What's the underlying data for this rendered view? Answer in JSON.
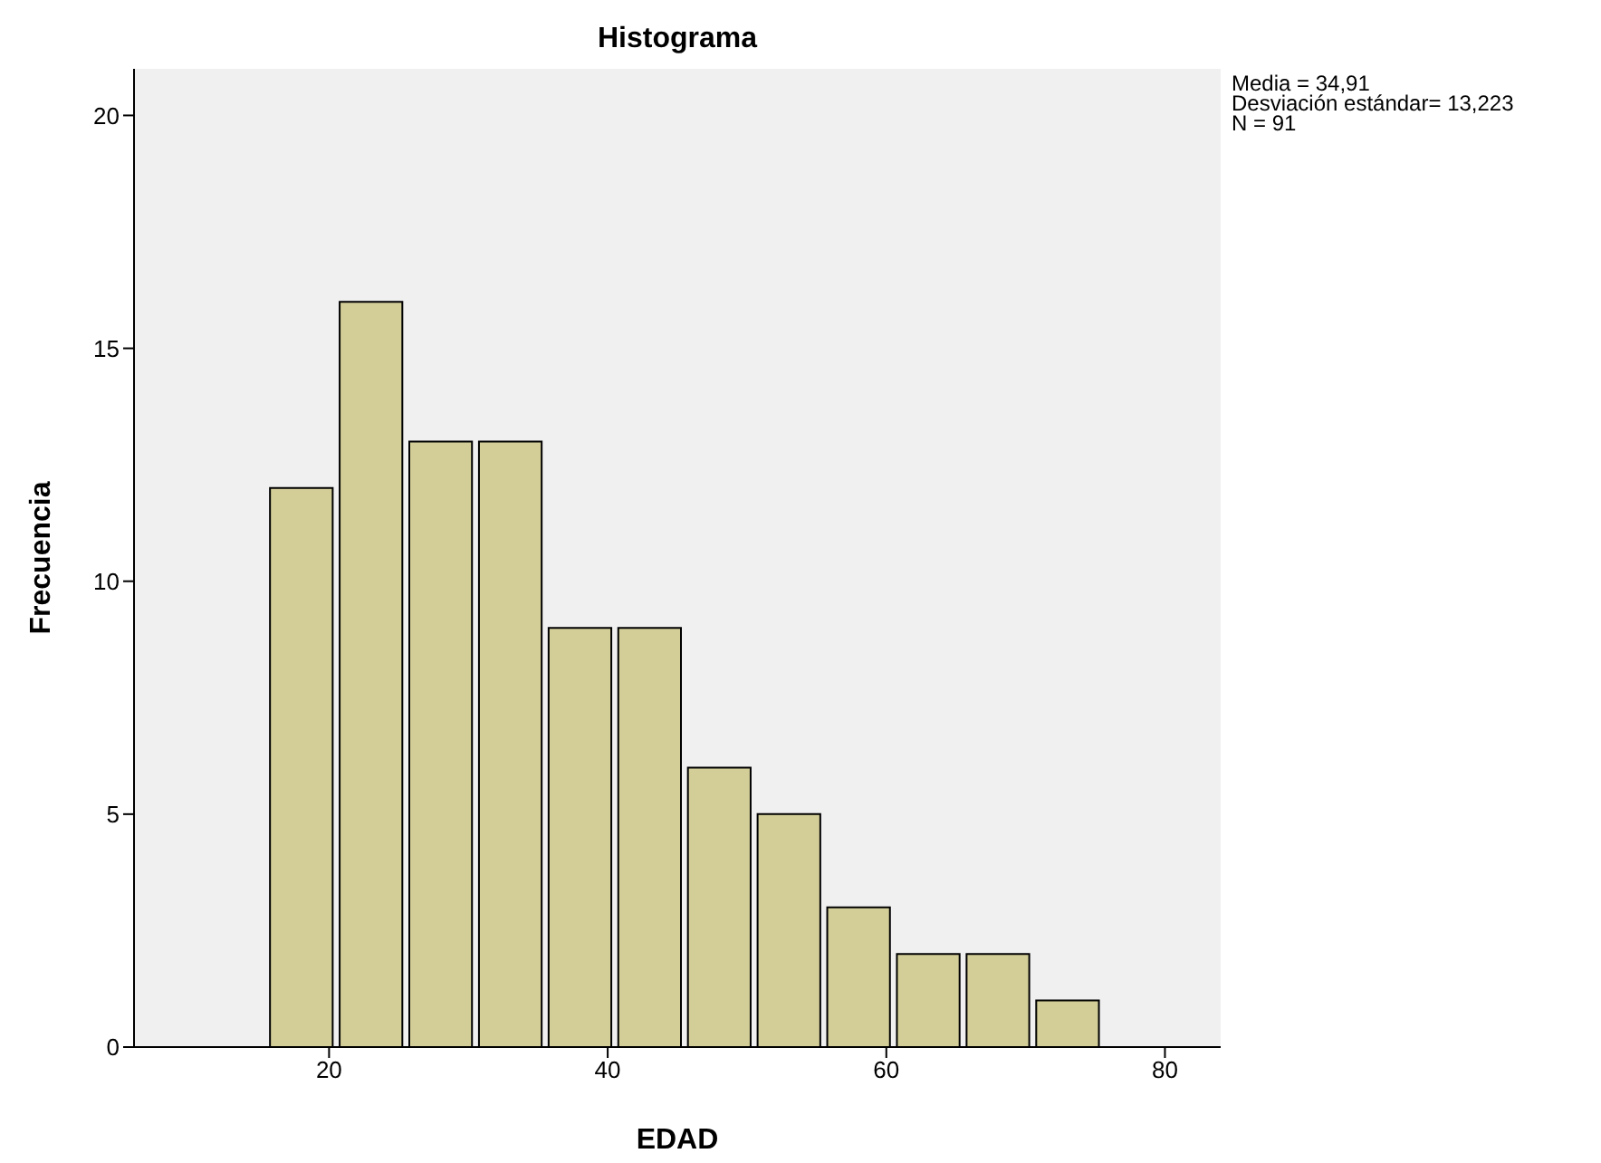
{
  "chart_data": {
    "type": "histogram",
    "title": "Histograma",
    "xlabel": "EDAD",
    "ylabel": "Frecuencia",
    "bins": [
      15.5,
      20.5,
      25.5,
      30.5,
      35.5,
      40.5,
      45.5,
      50.5,
      55.5,
      60.5,
      65.5,
      70.5,
      75.5
    ],
    "values": [
      12,
      16,
      13,
      13,
      9,
      9,
      6,
      5,
      3,
      2,
      2,
      1
    ],
    "color": "#d3ce98",
    "xlim": [
      6,
      84
    ],
    "xticks": [
      20,
      40,
      60,
      80
    ],
    "ylim": [
      0,
      21
    ],
    "yticks": [
      0,
      5,
      10,
      15,
      20
    ],
    "grid": false,
    "annotations": [
      "Media = 34,91",
      "Desviación estándar= 13,223",
      "N = 91"
    ]
  }
}
